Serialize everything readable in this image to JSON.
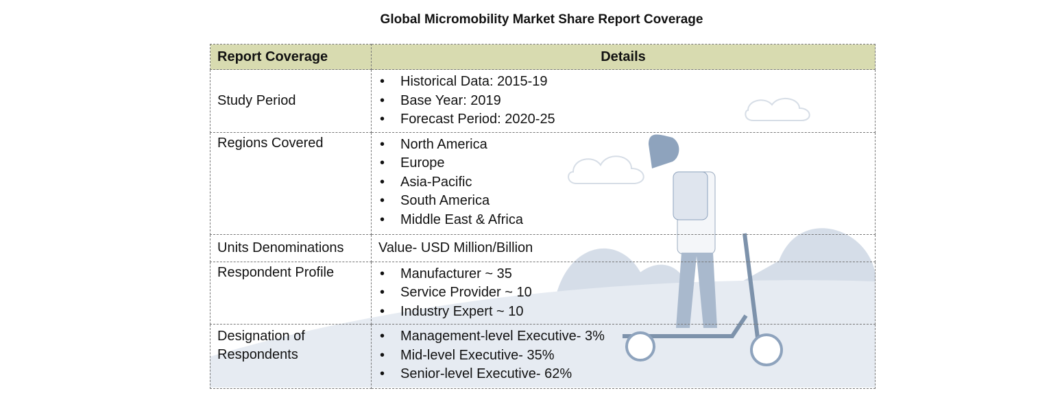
{
  "title": "Global Micromobility  Market Share Report Coverage",
  "header": {
    "col1": "Report Coverage",
    "col2": "Details"
  },
  "header_color": "#d8dbb0",
  "rows": [
    {
      "label": "Study Period",
      "items": [
        "Historical Data: 2015-19",
        "Base Year: 2019",
        "Forecast Period: 2020-25"
      ]
    },
    {
      "label": "Regions Covered",
      "items": [
        "North America",
        "Europe",
        "Asia-Pacific",
        "South America",
        "Middle East & Africa"
      ]
    },
    {
      "label": "Units Denominations",
      "text": "Value- USD Million/Billion"
    },
    {
      "label": "Respondent Profile",
      "items": [
        "Manufacturer ~ 35",
        "Service Provider ~ 10",
        "Industry Expert ~ 10"
      ]
    },
    {
      "label": "Designation of Respondents",
      "items": [
        "Management-level  Executive- 3%",
        "Mid-level Executive- 35%",
        "Senior-level Executive- 62%"
      ]
    }
  ]
}
